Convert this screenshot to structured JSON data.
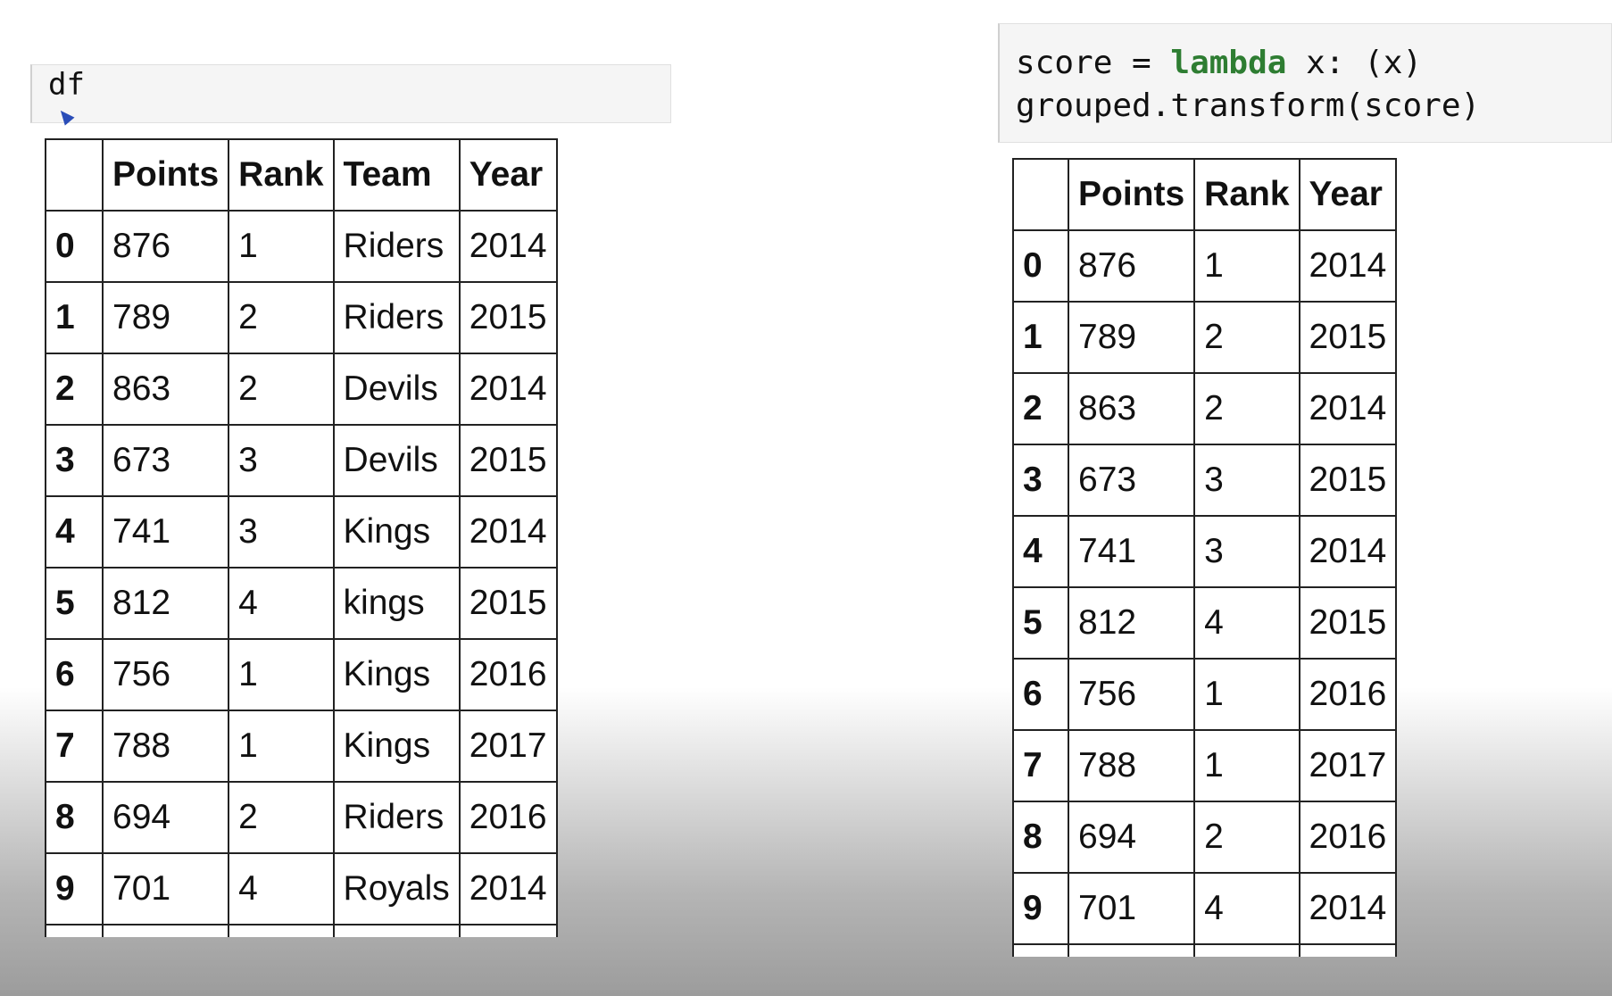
{
  "left_cell": {
    "code": "df"
  },
  "right_cell": {
    "line1": {
      "before": "score = ",
      "keyword": "lambda",
      "after": " x: (x)"
    },
    "line2": "grouped.transform(score)"
  },
  "left_table": {
    "columns": [
      "Points",
      "Rank",
      "Team",
      "Year"
    ],
    "rows": [
      {
        "index": "0",
        "cells": [
          "876",
          "1",
          "Riders",
          "2014"
        ]
      },
      {
        "index": "1",
        "cells": [
          "789",
          "2",
          "Riders",
          "2015"
        ]
      },
      {
        "index": "2",
        "cells": [
          "863",
          "2",
          "Devils",
          "2014"
        ]
      },
      {
        "index": "3",
        "cells": [
          "673",
          "3",
          "Devils",
          "2015"
        ]
      },
      {
        "index": "4",
        "cells": [
          "741",
          "3",
          "Kings",
          "2014"
        ]
      },
      {
        "index": "5",
        "cells": [
          "812",
          "4",
          "kings",
          "2015"
        ]
      },
      {
        "index": "6",
        "cells": [
          "756",
          "1",
          "Kings",
          "2016"
        ]
      },
      {
        "index": "7",
        "cells": [
          "788",
          "1",
          "Kings",
          "2017"
        ]
      },
      {
        "index": "8",
        "cells": [
          "694",
          "2",
          "Riders",
          "2016"
        ]
      },
      {
        "index": "9",
        "cells": [
          "701",
          "4",
          "Royals",
          "2014"
        ]
      }
    ]
  },
  "right_table": {
    "columns": [
      "Points",
      "Rank",
      "Year"
    ],
    "rows": [
      {
        "index": "0",
        "cells": [
          "876",
          "1",
          "2014"
        ]
      },
      {
        "index": "1",
        "cells": [
          "789",
          "2",
          "2015"
        ]
      },
      {
        "index": "2",
        "cells": [
          "863",
          "2",
          "2014"
        ]
      },
      {
        "index": "3",
        "cells": [
          "673",
          "3",
          "2015"
        ]
      },
      {
        "index": "4",
        "cells": [
          "741",
          "3",
          "2014"
        ]
      },
      {
        "index": "5",
        "cells": [
          "812",
          "4",
          "2015"
        ]
      },
      {
        "index": "6",
        "cells": [
          "756",
          "1",
          "2016"
        ]
      },
      {
        "index": "7",
        "cells": [
          "788",
          "1",
          "2017"
        ]
      },
      {
        "index": "8",
        "cells": [
          "694",
          "2",
          "2016"
        ]
      },
      {
        "index": "9",
        "cells": [
          "701",
          "4",
          "2014"
        ]
      }
    ]
  }
}
